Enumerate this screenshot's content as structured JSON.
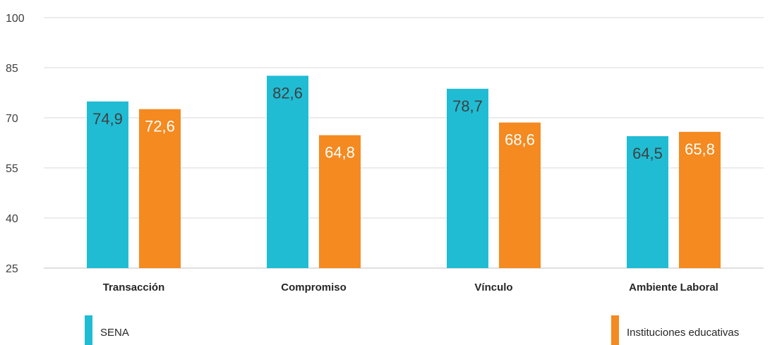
{
  "chart_data": {
    "type": "bar",
    "title": "",
    "xlabel": "",
    "ylabel": "",
    "categories": [
      "Transacción",
      "Compromiso",
      "Vínculo",
      "Ambiente Laboral"
    ],
    "series": [
      {
        "name": "SENA",
        "color": "#20BCD4",
        "values": [
          74.9,
          82.6,
          78.7,
          64.5
        ],
        "labels": [
          "74,9",
          "82,6",
          "78,7",
          "64,5"
        ]
      },
      {
        "name": "Instituciones educativas",
        "color": "#F48A20",
        "values": [
          72.6,
          64.8,
          68.6,
          65.8
        ],
        "labels": [
          "72,6",
          "64,8",
          "68,6",
          "65,8"
        ]
      }
    ],
    "ylim": [
      25,
      100
    ],
    "yticks": [
      25,
      40,
      55,
      70,
      85,
      100
    ],
    "grid": true,
    "legend_position": "bottom"
  }
}
